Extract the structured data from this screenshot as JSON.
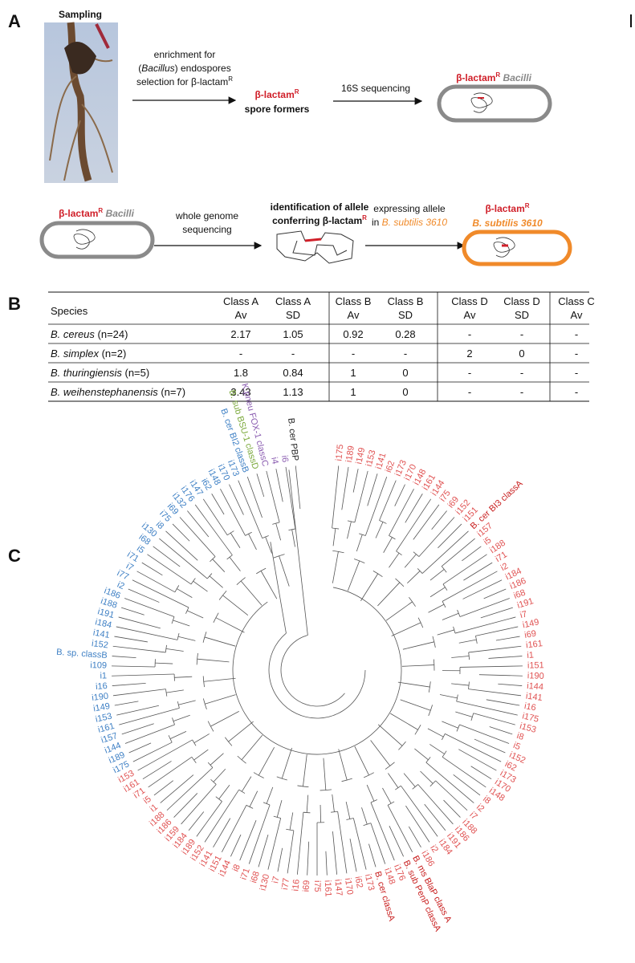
{
  "panel_a": {
    "label": "A",
    "sampling": "Sampling",
    "step1": [
      "enrichment for",
      "(",
      "Bacillus",
      ") endospores",
      "selection for β-lactam",
      "R"
    ],
    "result1": [
      "β-lactam",
      "R",
      "spore formers"
    ],
    "step2": "16S sequencing",
    "result2": [
      "β-lactam",
      "R",
      "Bacilli"
    ],
    "start2": [
      "β-lactam",
      "R",
      "Bacilli"
    ],
    "step3": [
      "whole genome",
      "sequencing"
    ],
    "result3": [
      "identification of allele",
      "conferring β-lactam",
      "R"
    ],
    "step4": [
      "expressing allele",
      "in ",
      "B. subtilis 3610"
    ],
    "result4": [
      "β-lactam",
      "R",
      "B. subtilis 3610"
    ]
  },
  "panel_b": {
    "label": "B",
    "header": [
      [
        "Species"
      ],
      [
        "Class A",
        "Av"
      ],
      [
        "Class A",
        "SD"
      ],
      [
        "Class B",
        "Av"
      ],
      [
        "Class B",
        "SD"
      ],
      [
        "Class D",
        "Av"
      ],
      [
        "Class D",
        "SD"
      ],
      [
        "Class C",
        "Av"
      ]
    ],
    "rows": [
      {
        "species": "B. cereus",
        "n": " (n=24)",
        "cells": [
          "2.17",
          "1.05",
          "0.92",
          "0.28",
          "-",
          "-",
          "-"
        ]
      },
      {
        "species": "B. simplex",
        "n": " (n=2)",
        "cells": [
          "-",
          "-",
          "-",
          "-",
          "2",
          "0",
          "-"
        ]
      },
      {
        "species": "B. thuringiensis",
        "n": " (n=5)",
        "cells": [
          "1.8",
          "0.84",
          "1",
          "0",
          "-",
          "-",
          "-"
        ]
      },
      {
        "species": "B. weihenstephanensis",
        "n": " (n=7)",
        "cells": [
          "3.43",
          "1.13",
          "1",
          "0",
          "-",
          "-",
          "-"
        ]
      }
    ]
  },
  "panel_c": {
    "label": "C",
    "groups": [
      {
        "color": "#e05252",
        "labels": [
          "i175",
          "i189",
          "i149",
          "i153",
          "i141",
          "i62",
          "i173",
          "i170",
          "i148",
          "i161",
          "i144",
          "i75",
          "i69",
          "i152",
          "i151"
        ]
      },
      {
        "color": "#c81e1e",
        "labels": [
          "B. cer BI3 classA"
        ]
      },
      {
        "color": "#e05252",
        "labels": [
          "i157",
          "i5",
          "i188",
          "i71",
          "i2",
          "i184",
          "i186",
          "i68",
          "i191",
          "i7",
          "i149",
          "i69",
          "i161",
          "i1",
          "i151",
          "i190",
          "i144",
          "i141",
          "i16",
          "i175",
          "i153",
          "i8",
          "i5",
          "i152",
          "i62",
          "i173",
          "i170",
          "i148",
          "i8",
          "i2",
          "i7",
          "i188",
          "i186",
          "i191",
          "i184",
          "i2",
          "i186"
        ]
      },
      {
        "color": "#c81e1e",
        "labels": [
          "B. ms BlaP class A",
          "B. sub PenP classA"
        ]
      },
      {
        "color": "#e05252",
        "labels": [
          "i176",
          "i148"
        ]
      },
      {
        "color": "#c81e1e",
        "labels": [
          "B. cer classA"
        ]
      },
      {
        "color": "#e05252",
        "labels": [
          "i173",
          "i62",
          "i170",
          "i147",
          "i161",
          "i75",
          "i69",
          "i16",
          "i77",
          "i7",
          "i130",
          "i68",
          "i71",
          "i8",
          "i144",
          "i151",
          "i141",
          "i152",
          "i189",
          "i184",
          "i159",
          "i186",
          "i188",
          "i1",
          "i5",
          "i71",
          "i161",
          "i153"
        ]
      },
      {
        "color": "#3d7fc4",
        "labels": [
          "i175",
          "i189",
          "i144",
          "i157",
          "i161",
          "i153",
          "i149",
          "i190",
          "i16",
          "i1",
          "i109",
          "B. sp. classB",
          "i152",
          "i141",
          "i184",
          "i191",
          "i188",
          "i186",
          "i2",
          "i77",
          "i7",
          "i71",
          "i5",
          "i68",
          "i130",
          "i8",
          "i75",
          "i69",
          "i132",
          "i176",
          "i147",
          "i62",
          "i148",
          "i170",
          "i173",
          "B. cer BI2 classB"
        ]
      },
      {
        "color": "#7aa83a",
        "labels": [
          "B. sub BSU-1 classD"
        ]
      },
      {
        "color": "#8a5cb0",
        "labels": [
          "K.pneu FOX-1 classC",
          "i4",
          "i6"
        ]
      },
      {
        "color": "#222222",
        "labels": [
          "B. cer PBP"
        ]
      }
    ]
  }
}
